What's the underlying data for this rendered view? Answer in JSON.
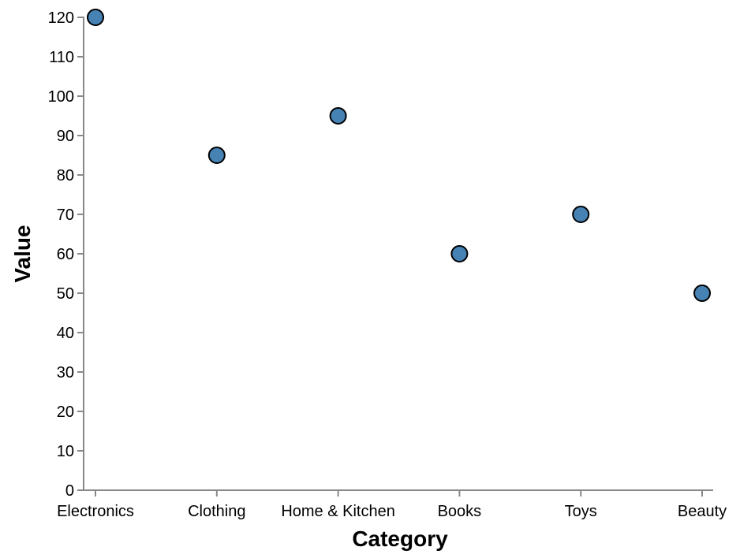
{
  "chart_data": {
    "type": "scatter",
    "xlabel": "Category",
    "ylabel": "Value",
    "categories": [
      "Electronics",
      "Clothing",
      "Home & Kitchen",
      "Books",
      "Toys",
      "Beauty"
    ],
    "values": [
      120,
      85,
      95,
      60,
      70,
      50
    ],
    "ylim": [
      0,
      120
    ],
    "yticks": [
      0,
      10,
      20,
      30,
      40,
      50,
      60,
      70,
      80,
      90,
      100,
      110,
      120
    ],
    "grid": false,
    "point_color": "#4682b4",
    "point_outline_color": "#000000",
    "axis_color": "#888888"
  }
}
